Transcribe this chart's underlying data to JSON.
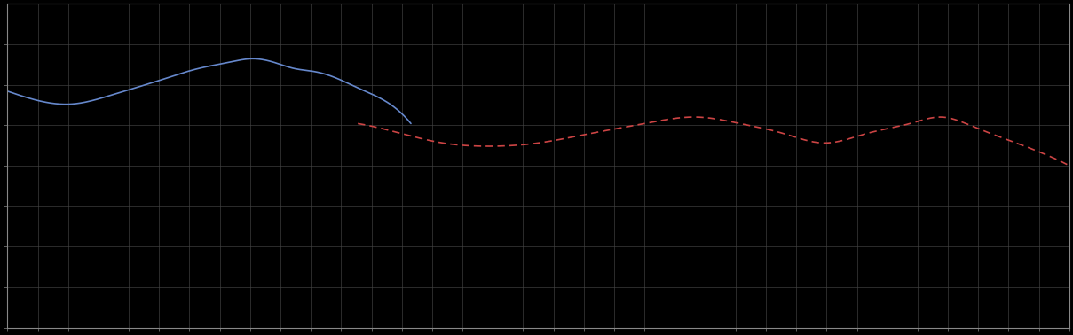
{
  "background_color": "#000000",
  "plot_bg_color": "#000000",
  "grid_color": "#444444",
  "blue_line_color": "#6688cc",
  "red_line_color": "#cc4444",
  "figsize": [
    12.09,
    3.78
  ],
  "dpi": 100,
  "xlim": [
    0,
    1
  ],
  "ylim": [
    0,
    1
  ],
  "grid_major_xticks": 35,
  "grid_major_yticks": 8,
  "blue_key_points_x": [
    0.0,
    0.03,
    0.06,
    0.1,
    0.14,
    0.18,
    0.21,
    0.23,
    0.25,
    0.27,
    0.29,
    0.31,
    0.33,
    0.35,
    0.38
  ],
  "blue_key_points_y": [
    0.73,
    0.7,
    0.69,
    0.72,
    0.76,
    0.8,
    0.82,
    0.83,
    0.82,
    0.8,
    0.79,
    0.77,
    0.74,
    0.71,
    0.63
  ],
  "red_key_points_x": [
    0.33,
    0.37,
    0.41,
    0.45,
    0.5,
    0.55,
    0.6,
    0.65,
    0.69,
    0.73,
    0.77,
    0.81,
    0.85,
    0.88,
    0.91,
    0.95,
    1.0
  ],
  "red_key_points_y": [
    0.63,
    0.6,
    0.57,
    0.56,
    0.57,
    0.6,
    0.63,
    0.65,
    0.63,
    0.6,
    0.57,
    0.6,
    0.63,
    0.65,
    0.62,
    0.57,
    0.5
  ]
}
